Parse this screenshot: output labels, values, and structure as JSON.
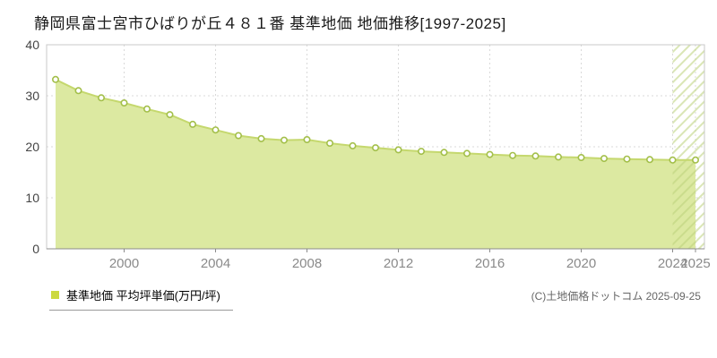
{
  "title": "静岡県富士宮市ひばりが丘４８１番 基準地価 地価推移[1997-2025]",
  "legend": {
    "label": "基準地価 平均坪単価(万円/坪)"
  },
  "copyright": "(C)土地価格ドットコム 2025-09-25",
  "colors": {
    "area_fill": "#dce9a1",
    "line": "#c5d86e",
    "point_stroke": "#a3bf4a",
    "point_fill": "#ffffff",
    "hatch_stripe": "#bcd279",
    "grid": "#d9d9d9",
    "frame": "#c8c8c8",
    "axis": "#8c8c8c",
    "xtick_label": "#8a8a8a",
    "ytick_label": "#444444",
    "legend_swatch": "#ccd93f"
  },
  "chart_data": {
    "type": "area",
    "title": "静岡県富士宮市ひばりが丘４８１番 基準地価 地価推移[1997-2025]",
    "ylabel": "平均坪単価(万円/坪)",
    "x": [
      1997,
      1998,
      1999,
      2000,
      2001,
      2002,
      2003,
      2004,
      2005,
      2006,
      2007,
      2008,
      2009,
      2010,
      2011,
      2012,
      2013,
      2014,
      2015,
      2016,
      2017,
      2018,
      2019,
      2020,
      2021,
      2022,
      2023,
      2024,
      2025
    ],
    "values": [
      33.2,
      31.0,
      29.6,
      28.6,
      27.4,
      26.3,
      24.4,
      23.3,
      22.2,
      21.6,
      21.3,
      21.4,
      20.7,
      20.2,
      19.8,
      19.4,
      19.1,
      18.9,
      18.7,
      18.5,
      18.3,
      18.2,
      18.0,
      17.9,
      17.7,
      17.6,
      17.5,
      17.4,
      17.4
    ],
    "ylim": [
      0,
      40
    ],
    "yticks": [
      0,
      10,
      20,
      30,
      40
    ],
    "xticks": [
      2000,
      2004,
      2008,
      2012,
      2016,
      2020,
      2024,
      2025
    ],
    "grid": true,
    "legend_position": "bottom-left",
    "hatch_from": 2024,
    "hatch_to": 2025
  }
}
